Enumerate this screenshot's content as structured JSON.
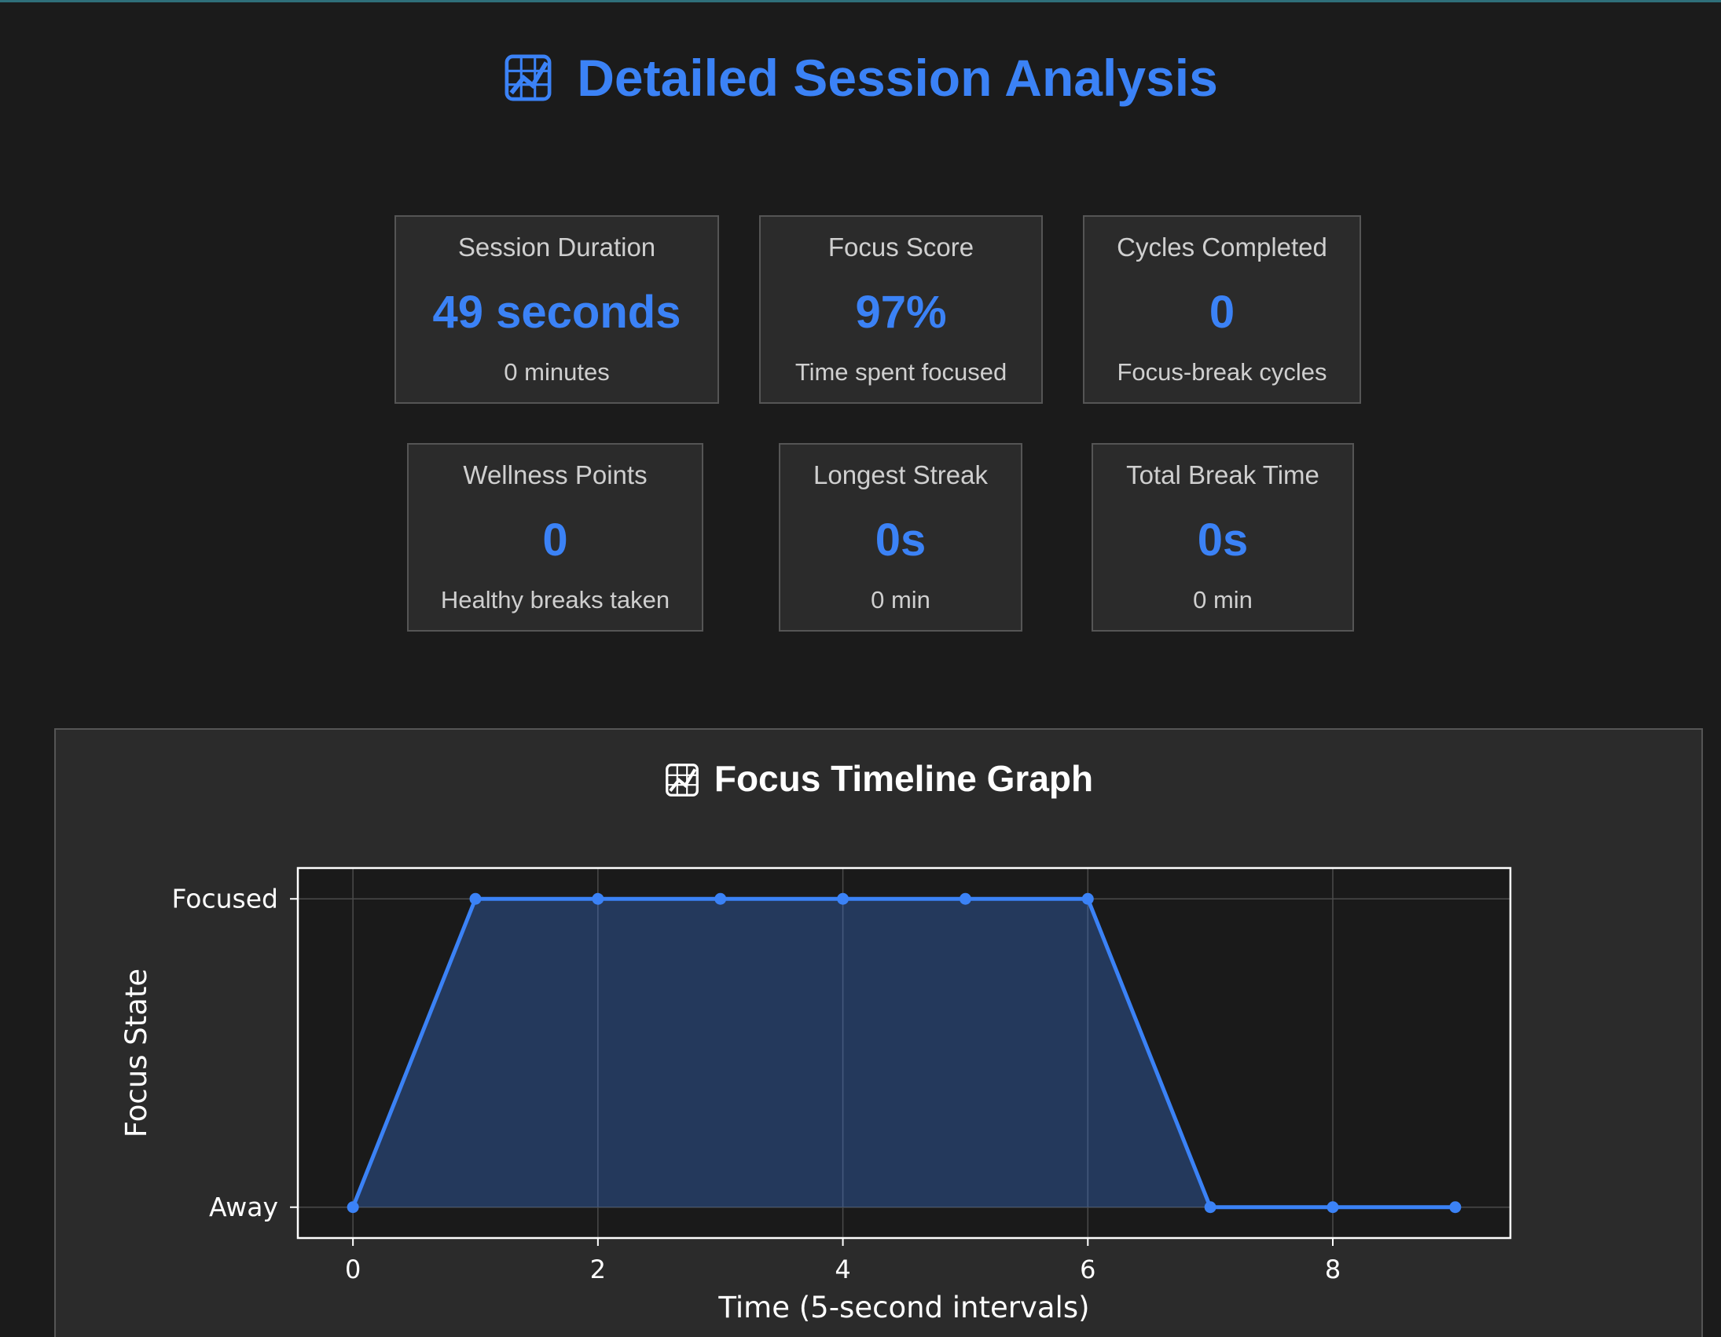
{
  "header": {
    "title": "Detailed Session Analysis",
    "icon": "chart-increasing-icon"
  },
  "stats": [
    {
      "label": "Session Duration",
      "value": "49 seconds",
      "sub": "0 minutes"
    },
    {
      "label": "Focus Score",
      "value": "97%",
      "sub": "Time spent focused"
    },
    {
      "label": "Cycles Completed",
      "value": "0",
      "sub": "Focus-break cycles"
    },
    {
      "label": "Wellness Points",
      "value": "0",
      "sub": "Healthy breaks taken"
    },
    {
      "label": "Longest Streak",
      "value": "0s",
      "sub": "0 min"
    },
    {
      "label": "Total Break Time",
      "value": "0s",
      "sub": "0 min"
    }
  ],
  "colors": {
    "accent": "#3b82f6",
    "background": "#1b1b1b",
    "card": "#2b2b2b",
    "plot_background": "#1a1a1a"
  },
  "chart_panel": {
    "title": "Focus Timeline Graph",
    "icon": "chart-increasing-icon"
  },
  "chart_data": {
    "type": "area",
    "title": "Focus Timeline Graph",
    "xlabel": "Time (5-second intervals)",
    "ylabel": "Focus State",
    "x": [
      0,
      1,
      2,
      3,
      4,
      5,
      6,
      7,
      8,
      9
    ],
    "series": [
      {
        "values": [
          0,
          1,
          1,
          1,
          1,
          1,
          1,
          0,
          0,
          0
        ]
      }
    ],
    "yticks": [
      0,
      1
    ],
    "ytick_labels": [
      "Away",
      "Focused"
    ],
    "xticks": [
      0,
      2,
      4,
      6,
      8
    ],
    "xlim": [
      -0.45,
      9.45
    ],
    "ylim": [
      -0.1,
      1.1
    ],
    "grid": true,
    "color": "#3b82f6"
  }
}
